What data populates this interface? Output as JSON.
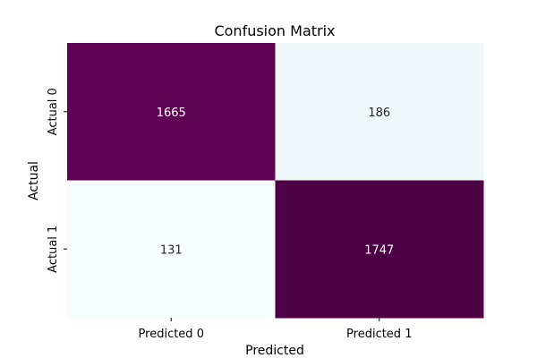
{
  "chart_data": {
    "type": "heatmap",
    "title": "Confusion Matrix",
    "xlabel": "Predicted",
    "ylabel": "Actual",
    "x_categories": [
      "Predicted 0",
      "Predicted 1"
    ],
    "y_categories": [
      "Actual 0",
      "Actual 1"
    ],
    "values": [
      [
        1665,
        186
      ],
      [
        131,
        1747
      ]
    ],
    "cell_colors": [
      [
        "#5f0454",
        "#f0f7fb"
      ],
      [
        "#f7fcfd",
        "#4e0047"
      ]
    ],
    "text_colors": [
      [
        "#ffffff",
        "#262626"
      ],
      [
        "#262626",
        "#ffffff"
      ]
    ],
    "colormap": "BuPu",
    "colorbar": false,
    "grid": false
  }
}
